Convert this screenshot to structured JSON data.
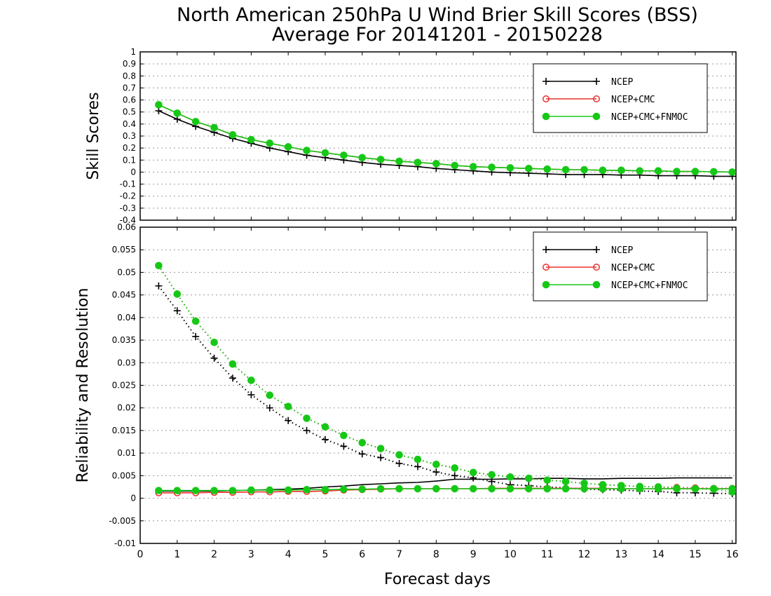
{
  "title": {
    "line1": "North American 250hPa U Wind Brier Skill Scores (BSS)",
    "line2": "Average For 20141201 - 20150228"
  },
  "xlabel": "Forecast days",
  "colors": {
    "NCEP": "#000000",
    "NCEP+CMC": "#e8302e",
    "NCEP+CMC+FNMOC": "#16c816"
  },
  "chart_data": [
    {
      "type": "line",
      "ylabel": "Skill Scores",
      "xlim": [
        0,
        16.1
      ],
      "ylim": [
        -0.4,
        1
      ],
      "xticks": [
        "0",
        "1",
        "2",
        "3",
        "4",
        "5",
        "6",
        "7",
        "8",
        "9",
        "10",
        "11",
        "12",
        "13",
        "14",
        "15",
        "16"
      ],
      "yticks": [
        "-0.4",
        "-0.3",
        "-0.2",
        "-0.1",
        "0",
        "0.1",
        "0.2",
        "0.3",
        "0.4",
        "0.5",
        "0.6",
        "0.7",
        "0.8",
        "0.9",
        "1"
      ],
      "grid": true,
      "legend_position": "top-right",
      "x": [
        0.5,
        1,
        1.5,
        2,
        2.5,
        3,
        3.5,
        4,
        4.5,
        5,
        5.5,
        6,
        6.5,
        7,
        7.5,
        8,
        8.5,
        9,
        9.5,
        10,
        10.5,
        11,
        11.5,
        12,
        12.5,
        13,
        13.5,
        14,
        14.5,
        15,
        15.5,
        16
      ],
      "series": [
        {
          "name": "NCEP",
          "marker": "plus",
          "values": [
            0.51,
            0.44,
            0.38,
            0.33,
            0.28,
            0.24,
            0.2,
            0.17,
            0.14,
            0.12,
            0.1,
            0.08,
            0.065,
            0.055,
            0.045,
            0.03,
            0.02,
            0.01,
            0.0,
            -0.005,
            -0.01,
            -0.015,
            -0.02,
            -0.02,
            -0.02,
            -0.025,
            -0.025,
            -0.03,
            -0.03,
            -0.03,
            -0.035,
            -0.035
          ]
        },
        {
          "name": "NCEP+CMC",
          "marker": "open-circle",
          "values": [
            0.56,
            0.49,
            0.42,
            0.37,
            0.31,
            0.27,
            0.24,
            0.21,
            0.18,
            0.16,
            0.14,
            0.12,
            0.105,
            0.09,
            0.08,
            0.07,
            0.055,
            0.045,
            0.04,
            0.035,
            0.03,
            0.025,
            0.02,
            0.02,
            0.015,
            0.015,
            0.01,
            0.01,
            0.005,
            0.005,
            0.003,
            0.0
          ]
        },
        {
          "name": "NCEP+CMC+FNMOC",
          "marker": "filled-circle",
          "values": [
            0.56,
            0.49,
            0.42,
            0.37,
            0.31,
            0.27,
            0.24,
            0.21,
            0.18,
            0.16,
            0.14,
            0.12,
            0.105,
            0.09,
            0.08,
            0.07,
            0.055,
            0.045,
            0.04,
            0.035,
            0.03,
            0.025,
            0.02,
            0.02,
            0.015,
            0.015,
            0.01,
            0.01,
            0.005,
            0.005,
            0.003,
            0.0
          ]
        }
      ]
    },
    {
      "type": "line",
      "ylabel": "Reliability and Resolution",
      "xlim": [
        0,
        16.1
      ],
      "ylim": [
        -0.01,
        0.06
      ],
      "xticks": [
        "0",
        "1",
        "2",
        "3",
        "4",
        "5",
        "6",
        "7",
        "8",
        "9",
        "10",
        "11",
        "12",
        "13",
        "14",
        "15",
        "16"
      ],
      "yticks": [
        "-0.01",
        "-0.005",
        "0",
        "0.005",
        "0.01",
        "0.015",
        "0.02",
        "0.025",
        "0.03",
        "0.035",
        "0.04",
        "0.045",
        "0.05",
        "0.055",
        "0.06"
      ],
      "grid": true,
      "legend_position": "top-right",
      "x": [
        0.5,
        1,
        1.5,
        2,
        2.5,
        3,
        3.5,
        4,
        4.5,
        5,
        5.5,
        6,
        6.5,
        7,
        7.5,
        8,
        8.5,
        9,
        9.5,
        10,
        10.5,
        11,
        11.5,
        12,
        12.5,
        13,
        13.5,
        14,
        14.5,
        15,
        15.5,
        16
      ],
      "series": [
        {
          "name": "NCEP",
          "component": "resolution",
          "style": "dotted",
          "marker": "plus",
          "values": [
            0.047,
            0.0415,
            0.0358,
            0.031,
            0.0266,
            0.0229,
            0.02,
            0.0172,
            0.015,
            0.013,
            0.0115,
            0.0098,
            0.009,
            0.0077,
            0.007,
            0.0058,
            0.005,
            0.0045,
            0.0037,
            0.003,
            0.0028,
            0.0025,
            0.0023,
            0.002,
            0.0019,
            0.0018,
            0.0016,
            0.0015,
            0.0012,
            0.0012,
            0.0011,
            0.001
          ]
        },
        {
          "name": "NCEP",
          "component": "reliability",
          "style": "solid",
          "marker": "none",
          "values": [
            0.0016,
            0.0016,
            0.0016,
            0.0016,
            0.0017,
            0.0018,
            0.0019,
            0.002,
            0.0022,
            0.0025,
            0.0027,
            0.003,
            0.0032,
            0.0034,
            0.0035,
            0.0038,
            0.0042,
            0.0042,
            0.0042,
            0.0043,
            0.0043,
            0.0044,
            0.0044,
            0.0043,
            0.0043,
            0.0044,
            0.0044,
            0.0044,
            0.0045,
            0.0045,
            0.0045,
            0.0045
          ]
        },
        {
          "name": "NCEP+CMC",
          "component": "resolution",
          "style": "dotted",
          "marker": "open-circle",
          "values": [
            0.0515,
            0.0452,
            0.0392,
            0.0345,
            0.0297,
            0.0261,
            0.0228,
            0.0203,
            0.0177,
            0.0158,
            0.0139,
            0.0123,
            0.011,
            0.0096,
            0.0086,
            0.0075,
            0.0067,
            0.0057,
            0.0052,
            0.0047,
            0.0044,
            0.004,
            0.0037,
            0.0033,
            0.003,
            0.0028,
            0.0026,
            0.0025,
            0.0024,
            0.0023,
            0.0022,
            0.0022
          ]
        },
        {
          "name": "NCEP+CMC",
          "component": "reliability",
          "style": "solid",
          "marker": "open-circle",
          "values": [
            0.0012,
            0.0012,
            0.0012,
            0.0013,
            0.0013,
            0.0014,
            0.0014,
            0.0015,
            0.0015,
            0.0016,
            0.0018,
            0.0019,
            0.002,
            0.0021,
            0.0021,
            0.0021,
            0.0021,
            0.0021,
            0.0022,
            0.0022,
            0.0022,
            0.0022,
            0.0022,
            0.0022,
            0.0022,
            0.0021,
            0.0021,
            0.0021,
            0.0021,
            0.0021,
            0.0021,
            0.0021
          ]
        },
        {
          "name": "NCEP+CMC+FNMOC",
          "component": "resolution",
          "style": "dotted",
          "marker": "filled-circle",
          "values": [
            0.0515,
            0.0452,
            0.0392,
            0.0345,
            0.0297,
            0.0261,
            0.0228,
            0.0203,
            0.0177,
            0.0158,
            0.0139,
            0.0123,
            0.011,
            0.0096,
            0.0086,
            0.0075,
            0.0067,
            0.0057,
            0.0052,
            0.0047,
            0.0044,
            0.004,
            0.0037,
            0.0033,
            0.003,
            0.0028,
            0.0026,
            0.0025,
            0.0022,
            0.0021,
            0.002,
            0.0014
          ]
        },
        {
          "name": "NCEP+CMC+FNMOC",
          "component": "reliability",
          "style": "solid",
          "marker": "filled-circle",
          "values": [
            0.0017,
            0.0017,
            0.0017,
            0.0017,
            0.0017,
            0.0018,
            0.0018,
            0.0018,
            0.0019,
            0.0019,
            0.002,
            0.002,
            0.0021,
            0.0021,
            0.0021,
            0.0021,
            0.0021,
            0.0021,
            0.0021,
            0.0021,
            0.0021,
            0.0021,
            0.0021,
            0.0021,
            0.0021,
            0.0021,
            0.0021,
            0.0021,
            0.0021,
            0.0021,
            0.0021,
            0.0021
          ]
        }
      ]
    }
  ]
}
